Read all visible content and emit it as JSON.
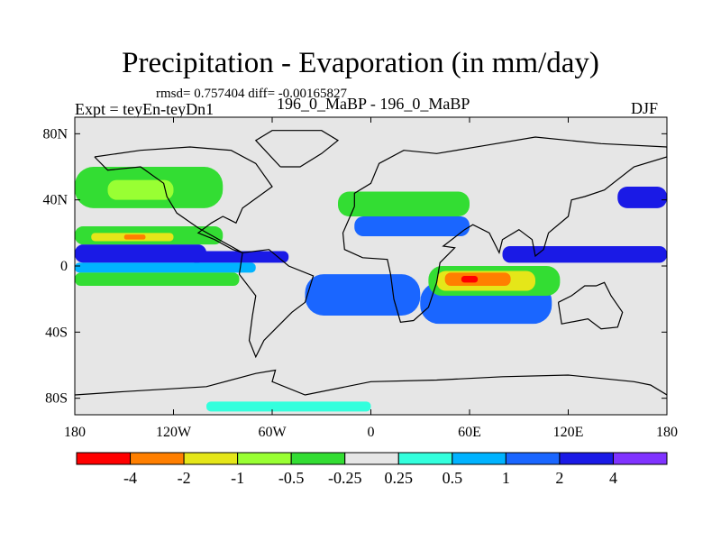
{
  "header": {
    "title": "Precipitation - Evaporation (in mm/day)",
    "stats": "rmsd= 0.757404  diff= -0.00165827",
    "experiment": "Expt = teyEn-teyDn1",
    "runs": "196_0_MaBP - 196_0_MaBP",
    "season": "DJF"
  },
  "chart_data": {
    "type": "heatmap",
    "title": "Precipitation - Evaporation (in mm/day)",
    "subtitle": "196_0_MaBP - 196_0_MaBP",
    "xlabel": "",
    "ylabel": "",
    "xlim": [
      -180,
      180
    ],
    "ylim": [
      -90,
      90
    ],
    "x_ticks": [
      {
        "value": -180,
        "label": "180"
      },
      {
        "value": -120,
        "label": "120W"
      },
      {
        "value": -60,
        "label": "60W"
      },
      {
        "value": 0,
        "label": "0"
      },
      {
        "value": 60,
        "label": "60E"
      },
      {
        "value": 120,
        "label": "120E"
      },
      {
        "value": 180,
        "label": "180"
      }
    ],
    "y_ticks": [
      {
        "value": 80,
        "label": "80N"
      },
      {
        "value": 40,
        "label": "40N"
      },
      {
        "value": 0,
        "label": "0"
      },
      {
        "value": -40,
        "label": "40S"
      },
      {
        "value": -80,
        "label": "80S"
      }
    ],
    "colorbar": {
      "labels": [
        "-4",
        "-2",
        "-1",
        "-0.5",
        "-0.25",
        "0.25",
        "0.5",
        "1",
        "2",
        "4"
      ],
      "colors": [
        "#ff0000",
        "#ff7f00",
        "#e5e619",
        "#99ff33",
        "#33dd33",
        "#e6e6e6",
        "#33ffdd",
        "#00b3ff",
        "#1a66ff",
        "#1a1ae6",
        "#8033ff"
      ]
    },
    "regions": [
      {
        "name": "tropical-pacific-west-band",
        "class": 9,
        "lon": [
          -180,
          -100
        ],
        "lat": [
          2,
          13
        ]
      },
      {
        "name": "tropical-pacific-east-band",
        "class": 9,
        "lon": [
          -110,
          -50
        ],
        "lat": [
          2,
          9
        ]
      },
      {
        "name": "pacific-dry-green-band",
        "class": 4,
        "lon": [
          -180,
          -90
        ],
        "lat": [
          13,
          24
        ]
      },
      {
        "name": "pacific-dry-yellow-band",
        "class": 2,
        "lon": [
          -170,
          -120
        ],
        "lat": [
          15,
          20
        ]
      },
      {
        "name": "pacific-dry-orange-core",
        "class": 1,
        "lon": [
          -150,
          -137
        ],
        "lat": [
          16,
          19
        ]
      },
      {
        "name": "pacific-southern-cyan-band",
        "class": 7,
        "lon": [
          -180,
          -70
        ],
        "lat": [
          -4,
          2
        ]
      },
      {
        "name": "pacific-south-green-band",
        "class": 4,
        "lon": [
          -180,
          -80
        ],
        "lat": [
          -12,
          -4
        ]
      },
      {
        "name": "north-pacific-green",
        "class": 4,
        "lon": [
          -180,
          -90
        ],
        "lat": [
          35,
          60
        ]
      },
      {
        "name": "north-pacific-lime",
        "class": 3,
        "lon": [
          -160,
          -120
        ],
        "lat": [
          40,
          52
        ]
      },
      {
        "name": "south-atlantic-blue",
        "class": 8,
        "lon": [
          -40,
          30
        ],
        "lat": [
          -30,
          -5
        ]
      },
      {
        "name": "indian-ocean-blue",
        "class": 8,
        "lon": [
          30,
          110
        ],
        "lat": [
          -35,
          -10
        ]
      },
      {
        "name": "indian-ocean-dry-green",
        "class": 4,
        "lon": [
          35,
          115
        ],
        "lat": [
          -18,
          0
        ]
      },
      {
        "name": "indian-ocean-dry-yellow",
        "class": 2,
        "lon": [
          40,
          100
        ],
        "lat": [
          -15,
          -3
        ]
      },
      {
        "name": "indian-ocean-dry-orange",
        "class": 1,
        "lon": [
          45,
          85
        ],
        "lat": [
          -12,
          -4
        ]
      },
      {
        "name": "indian-ocean-dry-red",
        "class": 0,
        "lon": [
          55,
          65
        ],
        "lat": [
          -10,
          -6
        ]
      },
      {
        "name": "east-indian-west-pacific-blue",
        "class": 9,
        "lon": [
          80,
          180
        ],
        "lat": [
          2,
          12
        ]
      },
      {
        "name": "north-atlantic-green",
        "class": 4,
        "lon": [
          -20,
          60
        ],
        "lat": [
          30,
          45
        ]
      },
      {
        "name": "north-atlantic-blue",
        "class": 8,
        "lon": [
          -10,
          60
        ],
        "lat": [
          18,
          30
        ]
      },
      {
        "name": "northwest-pacific-blue",
        "class": 9,
        "lon": [
          150,
          180
        ],
        "lat": [
          35,
          48
        ]
      },
      {
        "name": "southern-ocean-cyan",
        "class": 6,
        "lon": [
          -100,
          0
        ],
        "lat": [
          -88,
          -82
        ]
      }
    ]
  }
}
